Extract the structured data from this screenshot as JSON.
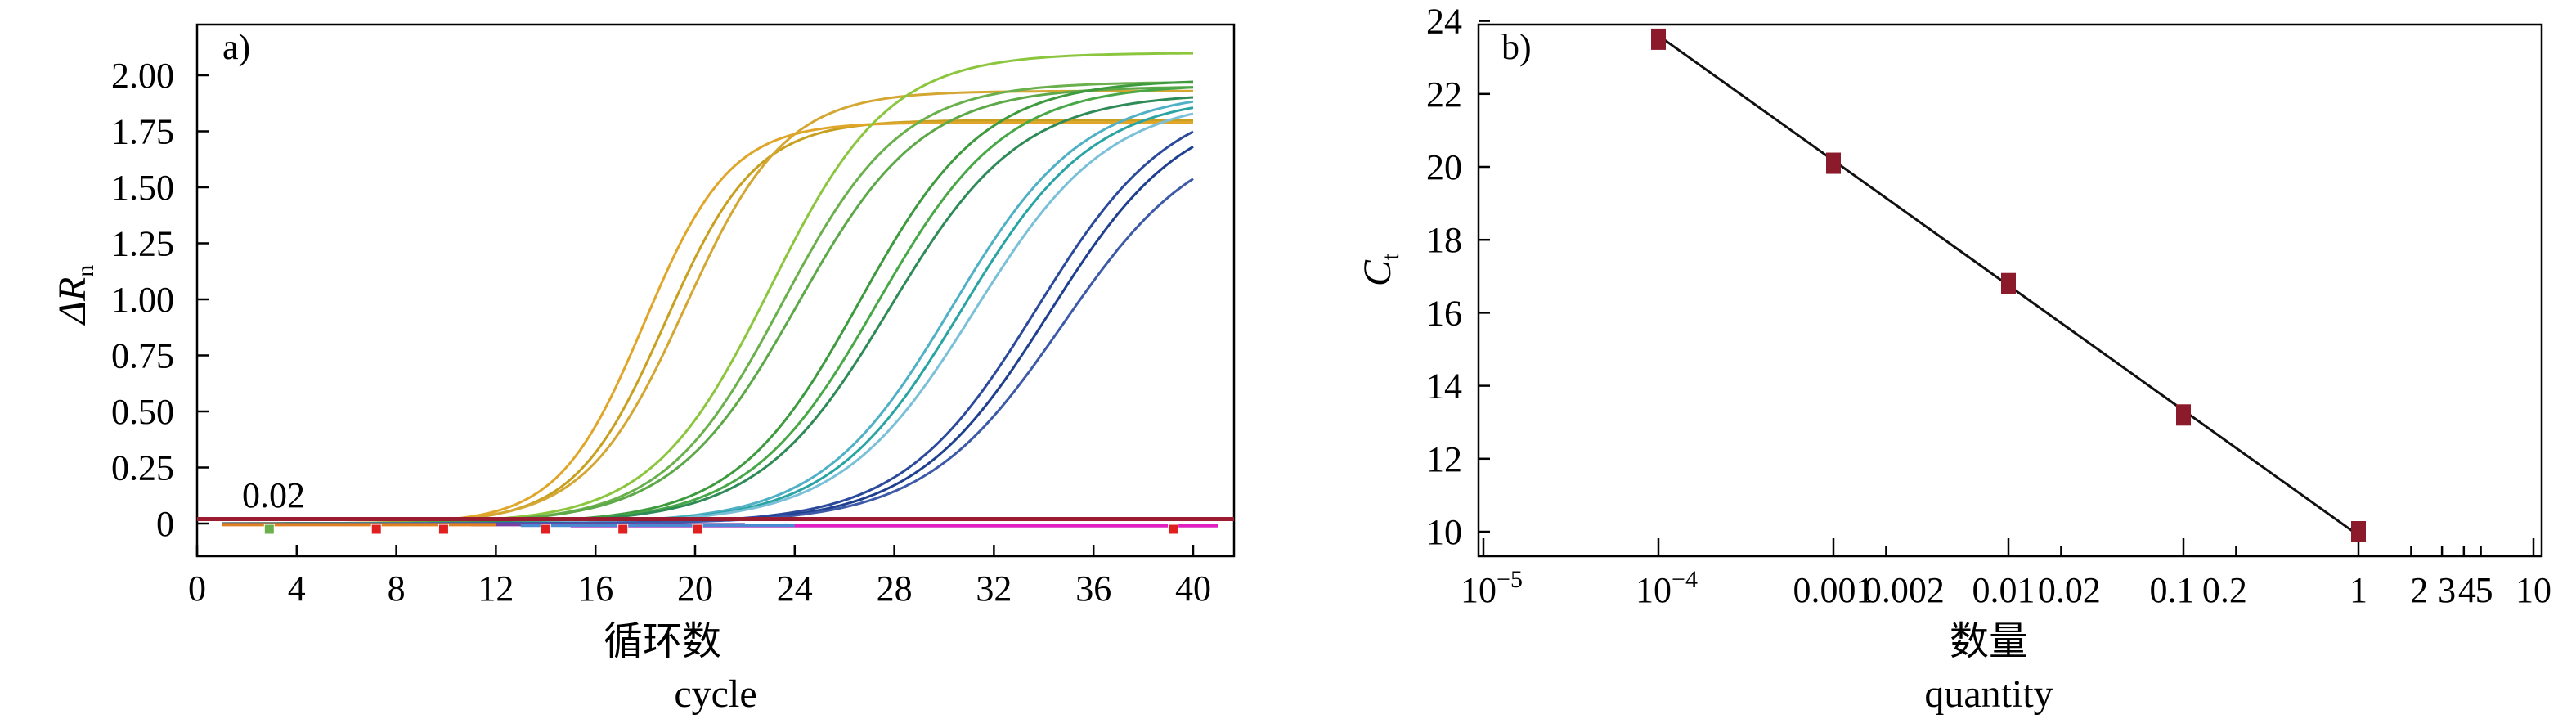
{
  "chart_data": [
    {
      "type": "line",
      "panel_label": "a)",
      "ylabel_main": "ΔR",
      "ylabel_sub": "n",
      "xlabel_cn": "循环数",
      "xlabel_en": "cycle",
      "xlim": [
        0,
        42
      ],
      "ylim": [
        -0.1,
        2.2
      ],
      "xticks": [
        0,
        4,
        8,
        12,
        16,
        20,
        24,
        28,
        32,
        36,
        40
      ],
      "yticks": [
        0,
        0.25,
        0.5,
        0.75,
        1.0,
        1.25,
        1.5,
        1.75,
        2.0
      ],
      "ytick_labels": [
        "0",
        "0.25",
        "0.50",
        "0.75",
        "1.00",
        "1.25",
        "1.50",
        "1.75",
        "2.00"
      ],
      "threshold": {
        "value": 0.02,
        "label": "0.02",
        "color": "#9b1b30"
      },
      "series": [
        {
          "color": "#c8a020",
          "ct": 15.9,
          "plateau": 1.8,
          "k": 0.55
        },
        {
          "color": "#d4a732",
          "ct": 16.4,
          "plateau": 1.93,
          "k": 0.5
        },
        {
          "color": "#e0a62a",
          "ct": 15.2,
          "plateau": 1.79,
          "k": 0.58
        },
        {
          "color": "#8cc63f",
          "ct": 19.2,
          "plateau": 2.1,
          "k": 0.42
        },
        {
          "color": "#6ab04c",
          "ct": 19.7,
          "plateau": 1.97,
          "k": 0.42
        },
        {
          "color": "#5da848",
          "ct": 20.1,
          "plateau": 1.95,
          "k": 0.4
        },
        {
          "color": "#3e9a3e",
          "ct": 22.6,
          "plateau": 1.98,
          "k": 0.4
        },
        {
          "color": "#48a848",
          "ct": 23.2,
          "plateau": 1.96,
          "k": 0.39
        },
        {
          "color": "#2e8b57",
          "ct": 23.6,
          "plateau": 1.92,
          "k": 0.38
        },
        {
          "color": "#4fb0c6",
          "ct": 26.1,
          "plateau": 1.93,
          "k": 0.38
        },
        {
          "color": "#2aa3a3",
          "ct": 26.5,
          "plateau": 1.91,
          "k": 0.38
        },
        {
          "color": "#7ac0d8",
          "ct": 26.9,
          "plateau": 1.9,
          "k": 0.37
        },
        {
          "color": "#2b4a9c",
          "ct": 29.4,
          "plateau": 1.92,
          "k": 0.37
        },
        {
          "color": "#1f3f8f",
          "ct": 29.9,
          "plateau": 1.88,
          "k": 0.37
        },
        {
          "color": "#3d5aa8",
          "ct": 30.3,
          "plateau": 1.77,
          "k": 0.36
        }
      ],
      "baseline_lines": [
        {
          "color": "#e020c0",
          "x": [
            15,
            41
          ],
          "value": -0.01
        },
        {
          "color": "#7b3fa0",
          "x": [
            11,
            22
          ],
          "value": -0.005
        },
        {
          "color": "#4a8ad0",
          "x": [
            13,
            24
          ],
          "value": -0.008
        },
        {
          "color": "#e08020",
          "x": [
            1,
            12
          ],
          "value": -0.005
        }
      ],
      "markers": [
        {
          "x": 2.9,
          "color": "#6ab04c"
        },
        {
          "x": 7.2,
          "color": "#e02020"
        },
        {
          "x": 9.9,
          "color": "#e02020"
        },
        {
          "x": 14.0,
          "color": "#e02020"
        },
        {
          "x": 17.1,
          "color": "#e02020"
        },
        {
          "x": 20.1,
          "color": "#e02020"
        },
        {
          "x": 39.2,
          "color": "#e02020"
        }
      ]
    },
    {
      "type": "scatter",
      "panel_label": "b)",
      "ylabel_main": "C",
      "ylabel_sub": "t",
      "xlabel_cn": "数量",
      "xlabel_en": "quantity",
      "xscale": "log",
      "xlim": [
        1e-05,
        10
      ],
      "ylim": [
        9,
        24
      ],
      "yticks": [
        10,
        12,
        14,
        16,
        18,
        20,
        22,
        24
      ],
      "xtick_labels": [
        {
          "value": 0.0001,
          "base": "10",
          "exp": "−4"
        },
        {
          "value": 0.001,
          "text": "0.001"
        },
        {
          "value": 0.002,
          "text": "0.002"
        },
        {
          "value": 0.01,
          "text": "0.01"
        },
        {
          "value": 0.02,
          "text": "0.02"
        },
        {
          "value": 0.1,
          "text": "0.1"
        },
        {
          "value": 0.2,
          "text": "0.2"
        },
        {
          "value": 1,
          "text": "1"
        },
        {
          "value": 2,
          "text": "2"
        },
        {
          "value": 3,
          "text": "3"
        },
        {
          "value": 4,
          "text": "4"
        },
        {
          "value": 5,
          "text": "5"
        },
        {
          "value": 10,
          "text": "10"
        }
      ],
      "xmin_label": {
        "value": 1e-05,
        "base": "10",
        "exp": "−5"
      },
      "minor_ticks": [
        0.002,
        0.02,
        0.2,
        2,
        3,
        4,
        5
      ],
      "points": [
        {
          "x": 0.0001,
          "y": 23.5
        },
        {
          "x": 0.001,
          "y": 20.1
        },
        {
          "x": 0.01,
          "y": 16.8
        },
        {
          "x": 0.1,
          "y": 13.2
        },
        {
          "x": 1,
          "y": 10.0
        }
      ],
      "fit_line": {
        "x": [
          0.0001,
          1
        ],
        "y": [
          23.6,
          9.9
        ]
      },
      "point_color": "#8b1a2b"
    }
  ]
}
